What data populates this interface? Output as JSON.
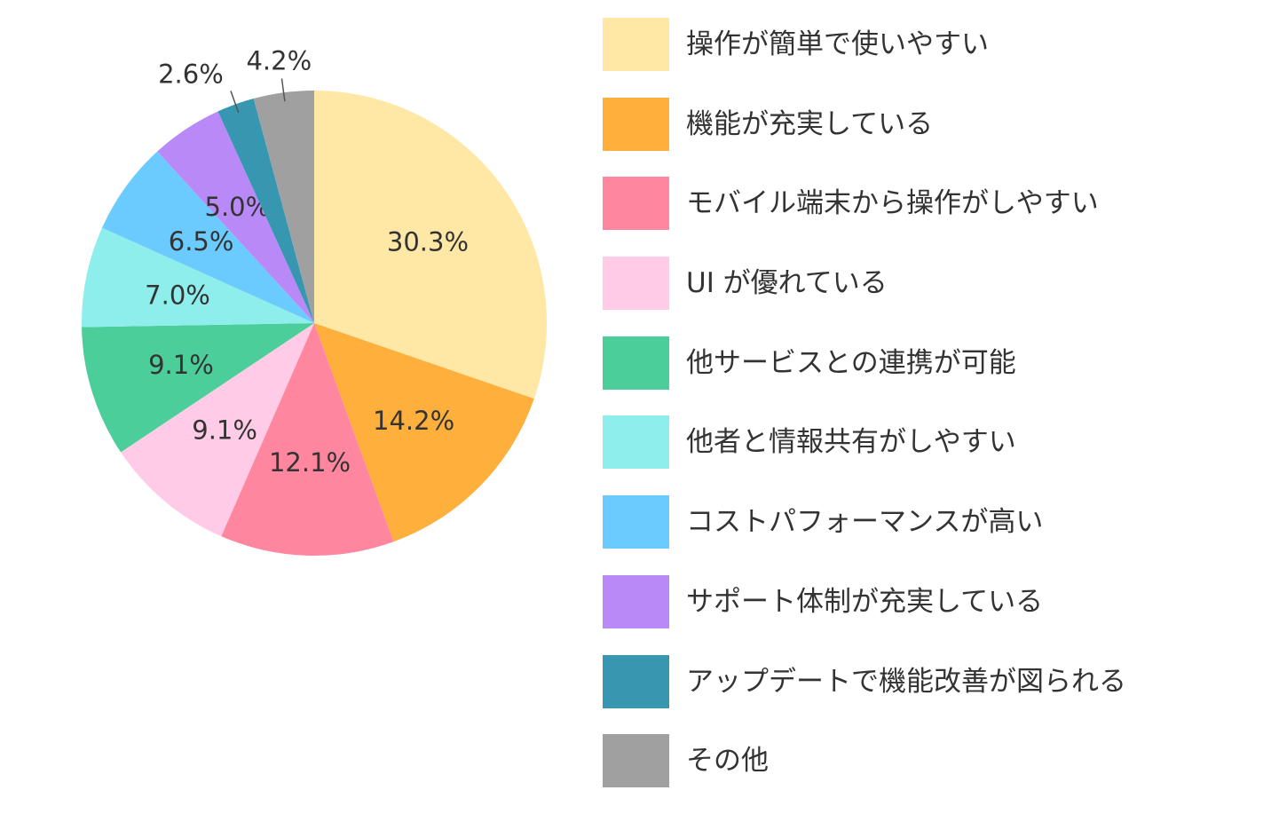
{
  "chart_data": {
    "type": "pie",
    "title": "",
    "start_angle": "top, clockwise",
    "slices": [
      {
        "label": "操作が簡単で使いやすい",
        "value": 30.3,
        "value_label": "30.3%",
        "color": "#FFE8A6"
      },
      {
        "label": "機能が充実している",
        "value": 14.2,
        "value_label": "14.2%",
        "color": "#FFAF3C"
      },
      {
        "label": "モバイル端末から操作がしやすい",
        "value": 12.1,
        "value_label": "12.1%",
        "color": "#FF869F"
      },
      {
        "label": "UI が優れている",
        "value": 9.1,
        "value_label": "9.1%",
        "color": "#FFCBE6"
      },
      {
        "label": "他サービスとの連携が可能",
        "value": 9.1,
        "value_label": "9.1%",
        "color": "#4CCE9B"
      },
      {
        "label": "他者と情報共有がしやすい",
        "value": 7.0,
        "value_label": "7.0%",
        "color": "#8EEEEC"
      },
      {
        "label": "コストパフォーマンスが高い",
        "value": 6.5,
        "value_label": "6.5%",
        "color": "#6BCBFF"
      },
      {
        "label": "サポート体制が充実している",
        "value": 5.0,
        "value_label": "5.0%",
        "color": "#B98AF7"
      },
      {
        "label": "アップデートで機能改善が図られる",
        "value": 2.6,
        "value_label": "2.6%",
        "color": "#3797B0"
      },
      {
        "label": "その他",
        "value": 4.2,
        "value_label": "4.2%",
        "color": "#A0A0A0"
      }
    ],
    "legend": {
      "position": "right"
    }
  }
}
